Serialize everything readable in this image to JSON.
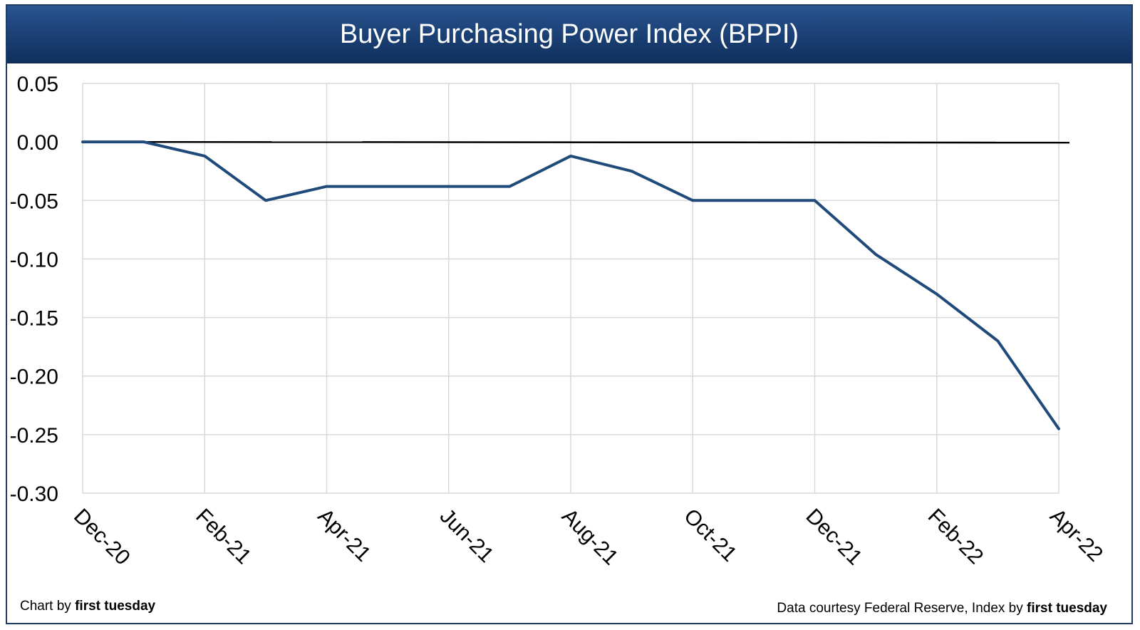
{
  "title": "Buyer Purchasing Power Index (BPPI)",
  "footer": {
    "left_prefix": "Chart by ",
    "left_brand": "first tuesday",
    "right_prefix": "Data courtesy Federal Reserve, Index by ",
    "right_brand": "first tuesday"
  },
  "colors": {
    "title_bar": "#1a3f73",
    "series_line": "#1f4a7a",
    "zero_line": "#000000",
    "grid": "#d9d9d9"
  },
  "chart_data": {
    "type": "line",
    "title": "Buyer Purchasing Power Index (BPPI)",
    "xlabel": "",
    "ylabel": "",
    "x": [
      "Dec-20",
      "Jan-21",
      "Feb-21",
      "Mar-21",
      "Apr-21",
      "May-21",
      "Jun-21",
      "Jul-21",
      "Aug-21",
      "Sep-21",
      "Oct-21",
      "Nov-21",
      "Dec-21",
      "Jan-22",
      "Feb-22",
      "Mar-22",
      "Apr-22"
    ],
    "x_tick_labels": [
      "Dec-20",
      "Feb-21",
      "Apr-21",
      "Jun-21",
      "Aug-21",
      "Oct-21",
      "Dec-21",
      "Feb-22",
      "Apr-22"
    ],
    "series": [
      {
        "values": [
          0.0,
          0.0,
          -0.012,
          -0.05,
          -0.038,
          -0.038,
          -0.038,
          -0.038,
          -0.012,
          -0.025,
          -0.05,
          -0.05,
          -0.05,
          -0.096,
          -0.13,
          -0.17,
          -0.245
        ]
      }
    ],
    "y_tick_labels": [
      "0.05",
      "0.00",
      "-0.05",
      "-0.10",
      "-0.15",
      "-0.20",
      "-0.25",
      "-0.30"
    ],
    "ylim": [
      -0.3,
      0.05
    ],
    "reference_line": 0,
    "grid": true,
    "legend": "none"
  }
}
